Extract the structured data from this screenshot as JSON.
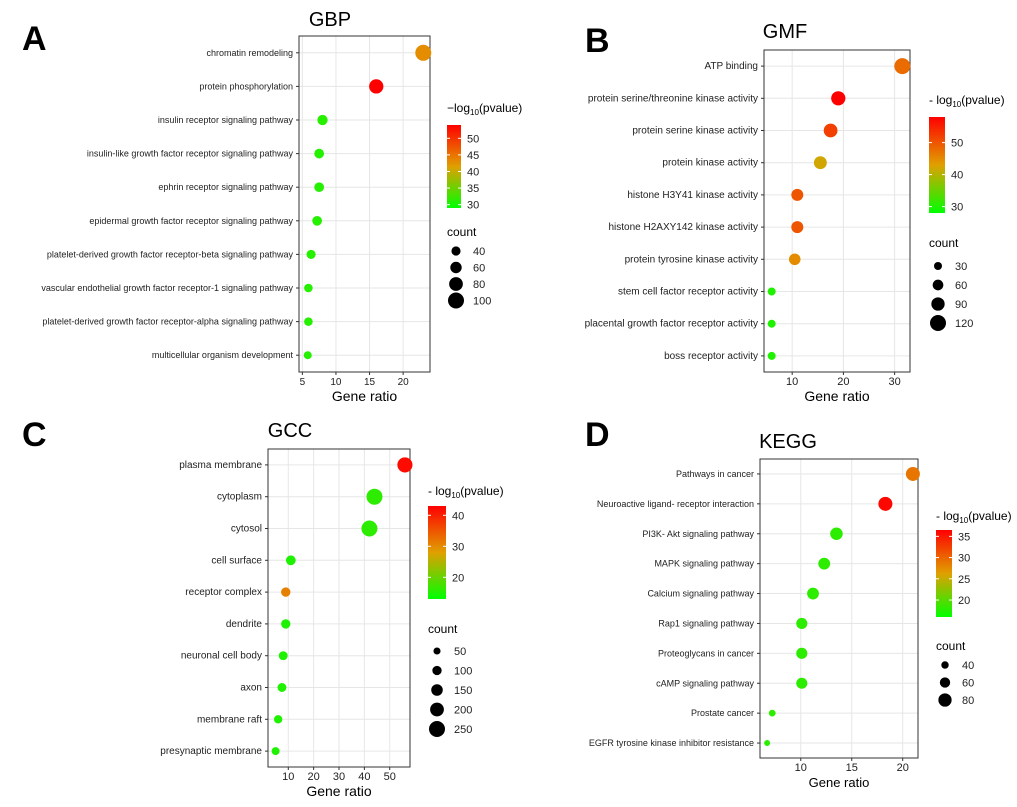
{
  "chart_data": [
    {
      "panel_letter": "A",
      "type": "scatter",
      "title": "GBP",
      "xlabel": "Gene ratio",
      "xlim": [
        4.5,
        24
      ],
      "xticks": [
        5,
        10,
        15,
        20
      ],
      "categories": [
        "chromatin remodeling",
        "protein phosphorylation",
        "insulin receptor signaling pathway",
        "insulin-like growth factor receptor signaling pathway",
        "ephrin receptor signaling pathway",
        "epidermal growth factor receptor signaling pathway",
        "platelet-derived growth factor receptor-beta signaling pathway",
        "vascular endothelial growth factor receptor-1 signaling pathway",
        "platelet-derived growth factor receptor-alpha signaling pathway",
        "multicellular organism development"
      ],
      "gene_ratio": [
        23,
        16,
        8,
        7.5,
        7.5,
        7.2,
        6.3,
        5.9,
        5.9,
        5.8
      ],
      "count": [
        100,
        85,
        50,
        45,
        45,
        45,
        40,
        35,
        35,
        30
      ],
      "neg_log10_pvalue": [
        43,
        54,
        31,
        31,
        31,
        31,
        31,
        31,
        31,
        31
      ],
      "color_legend": {
        "title_prefix": "−log",
        "title_sub": "10",
        "title_suffix": "(pvalue)",
        "min": 29,
        "max": 54,
        "ticks": [
          50,
          45,
          40,
          35,
          30
        ]
      },
      "size_legend": {
        "title": "count",
        "values": [
          40,
          60,
          80,
          100
        ]
      }
    },
    {
      "panel_letter": "B",
      "type": "scatter",
      "title": "GMF",
      "xlabel": "Gene ratio",
      "xlim": [
        4.5,
        33
      ],
      "xticks": [
        10,
        20,
        30
      ],
      "categories": [
        "ATP binding",
        "protein serine/threonine kinase activity",
        "protein serine kinase activity",
        "protein kinase activity",
        "histone H3Y41 kinase activity",
        "histone H2AXY142 kinase activity",
        "protein tyrosine kinase activity",
        "stem cell factor receptor activity",
        "placental growth factor receptor activity",
        "boss receptor activity"
      ],
      "gene_ratio": [
        31.5,
        19,
        17.5,
        15.5,
        11,
        11,
        10.5,
        6,
        6,
        6
      ],
      "count": [
        120,
        100,
        95,
        85,
        75,
        75,
        70,
        30,
        30,
        30
      ],
      "neg_log10_pvalue": [
        48,
        58,
        52,
        42,
        50,
        50,
        45,
        30,
        30,
        30
      ],
      "color_legend": {
        "title_prefix": "- log",
        "title_sub": "10",
        "title_suffix": "(pvalue)",
        "min": 28,
        "max": 58,
        "ticks": [
          50,
          40,
          30
        ]
      },
      "size_legend": {
        "title": "count",
        "values": [
          30,
          60,
          90,
          120
        ]
      }
    },
    {
      "panel_letter": "C",
      "type": "scatter",
      "title": "GCC",
      "xlabel": "Gene ratio",
      "xlim": [
        2,
        58
      ],
      "xticks": [
        10,
        20,
        30,
        40,
        50
      ],
      "categories": [
        "plasma membrane",
        "cytoplasm",
        "cytosol",
        "cell surface",
        "receptor complex",
        "dendrite",
        "neuronal cell body",
        "axon",
        "membrane raft",
        "presynaptic membrane"
      ],
      "gene_ratio": [
        56,
        44,
        42,
        11,
        9,
        9,
        8,
        7.5,
        6,
        5
      ],
      "count": [
        230,
        250,
        250,
        110,
        100,
        100,
        90,
        90,
        80,
        70
      ],
      "neg_log10_pvalue": [
        42,
        16,
        16,
        15,
        31,
        15,
        15,
        15,
        15,
        15
      ],
      "color_legend": {
        "title_prefix": "- log",
        "title_sub": "10",
        "title_suffix": "(pvalue)",
        "min": 13,
        "max": 43,
        "ticks": [
          40,
          30,
          20
        ]
      },
      "size_legend": {
        "title": "count",
        "values": [
          50,
          100,
          150,
          200,
          250
        ]
      }
    },
    {
      "panel_letter": "D",
      "type": "scatter",
      "title": "KEGG",
      "xlabel": "Gene ratio",
      "xlim": [
        6,
        21.5
      ],
      "xticks": [
        10,
        15,
        20
      ],
      "categories": [
        "Pathways in cancer",
        "Neuroactive ligand- receptor interaction",
        "PI3K- Akt signaling pathway",
        "MAPK signaling pathway",
        "Calcium signaling pathway",
        "Rap1 signaling pathway",
        "Proteoglycans in cancer",
        "cAMP signaling pathway",
        "Prostate cancer",
        "EGFR tyrosine kinase inhibitor resistance"
      ],
      "gene_ratio": [
        21,
        18.3,
        13.5,
        12.3,
        11.2,
        10.1,
        10.1,
        10.1,
        7.2,
        6.7
      ],
      "count": [
        85,
        85,
        75,
        70,
        70,
        65,
        65,
        65,
        35,
        30
      ],
      "neg_log10_pvalue": [
        29,
        36,
        18,
        18,
        18,
        18,
        18,
        18,
        18,
        18
      ],
      "color_legend": {
        "title_prefix": "- log",
        "title_sub": "10",
        "title_suffix": "(pvalue)",
        "min": 16,
        "max": 36.5,
        "ticks": [
          35,
          30,
          25,
          20
        ]
      },
      "size_legend": {
        "title": "count",
        "values": [
          40,
          60,
          80
        ]
      }
    }
  ],
  "colors": {
    "low": "#00ff00",
    "mid": "#e0a000",
    "high": "#ff0000",
    "axis": "#333333",
    "grid": "#e6e6e6",
    "label": "#222222"
  }
}
